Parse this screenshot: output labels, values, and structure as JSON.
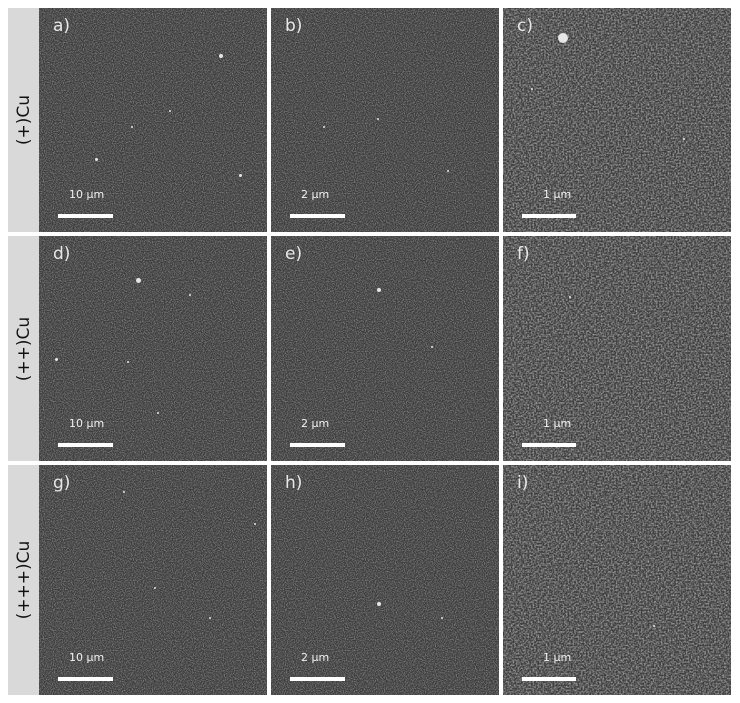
{
  "rows": [
    {
      "label": "(+)Cu",
      "panels": [
        {
          "label": "a)",
          "scale_bar": "10 µm"
        },
        {
          "label": "b)",
          "scale_bar": "2 µm"
        },
        {
          "label": "c)",
          "scale_bar": "1 µm"
        }
      ]
    },
    {
      "label": "(++)Cu",
      "panels": [
        {
          "label": "d)",
          "scale_bar": "10 µm"
        },
        {
          "label": "e)",
          "scale_bar": "2 µm"
        },
        {
          "label": "f)",
          "scale_bar": "1 µm"
        }
      ]
    },
    {
      "label": "(+++)Cu",
      "panels": [
        {
          "label": "g)",
          "scale_bar": "10 µm"
        },
        {
          "label": "h)",
          "scale_bar": "2 µm"
        },
        {
          "label": "i)",
          "scale_bar": "1 µm"
        }
      ]
    }
  ]
}
